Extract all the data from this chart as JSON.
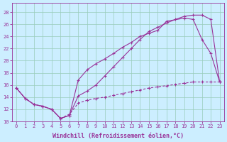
{
  "xlabel": "Windchill (Refroidissement éolien,°C)",
  "bg_color": "#cceeff",
  "grid_color": "#99ccbb",
  "line_color": "#993399",
  "xlim": [
    -0.5,
    23.5
  ],
  "ylim": [
    10,
    29.5
  ],
  "xticks": [
    0,
    1,
    2,
    3,
    4,
    5,
    6,
    7,
    8,
    9,
    10,
    11,
    12,
    13,
    14,
    15,
    16,
    17,
    18,
    19,
    20,
    21,
    22,
    23
  ],
  "yticks": [
    10,
    12,
    14,
    16,
    18,
    20,
    22,
    24,
    26,
    28
  ],
  "line1_x": [
    0,
    1,
    2,
    3,
    4,
    5,
    6,
    7,
    8,
    9,
    10,
    11,
    12,
    13,
    14,
    15,
    16,
    17,
    19,
    20,
    21,
    22,
    23
  ],
  "line1_y": [
    15.5,
    13.8,
    12.8,
    12.5,
    12.0,
    10.5,
    11.0,
    16.8,
    18.5,
    19.5,
    20.3,
    21.2,
    22.2,
    23.0,
    24.0,
    24.5,
    25.0,
    26.5,
    27.0,
    26.8,
    23.5,
    21.2,
    16.5
  ],
  "line2_x": [
    0,
    1,
    2,
    3,
    4,
    5,
    6,
    7,
    8,
    9,
    10,
    11,
    12,
    13,
    14,
    15,
    16,
    17,
    18,
    19,
    20,
    21,
    22,
    23
  ],
  "line2_y": [
    15.5,
    13.8,
    12.8,
    12.5,
    12.0,
    10.5,
    11.0,
    14.2,
    15.0,
    16.0,
    17.5,
    19.0,
    20.5,
    22.0,
    23.5,
    24.8,
    25.5,
    26.2,
    26.8,
    27.3,
    27.5,
    27.5,
    26.8,
    16.5
  ],
  "line3_x": [
    0,
    1,
    2,
    3,
    4,
    5,
    6,
    7,
    8,
    9,
    10,
    11,
    12,
    13,
    14,
    15,
    16,
    17,
    18,
    19,
    20,
    21,
    22,
    23
  ],
  "line3_y": [
    15.5,
    13.8,
    12.8,
    12.5,
    12.0,
    10.5,
    11.2,
    13.0,
    13.5,
    13.8,
    14.0,
    14.3,
    14.6,
    14.9,
    15.2,
    15.5,
    15.7,
    15.9,
    16.1,
    16.3,
    16.5,
    16.5,
    16.5,
    16.5
  ],
  "xlabel_fontsize": 6,
  "tick_fontsize": 5
}
